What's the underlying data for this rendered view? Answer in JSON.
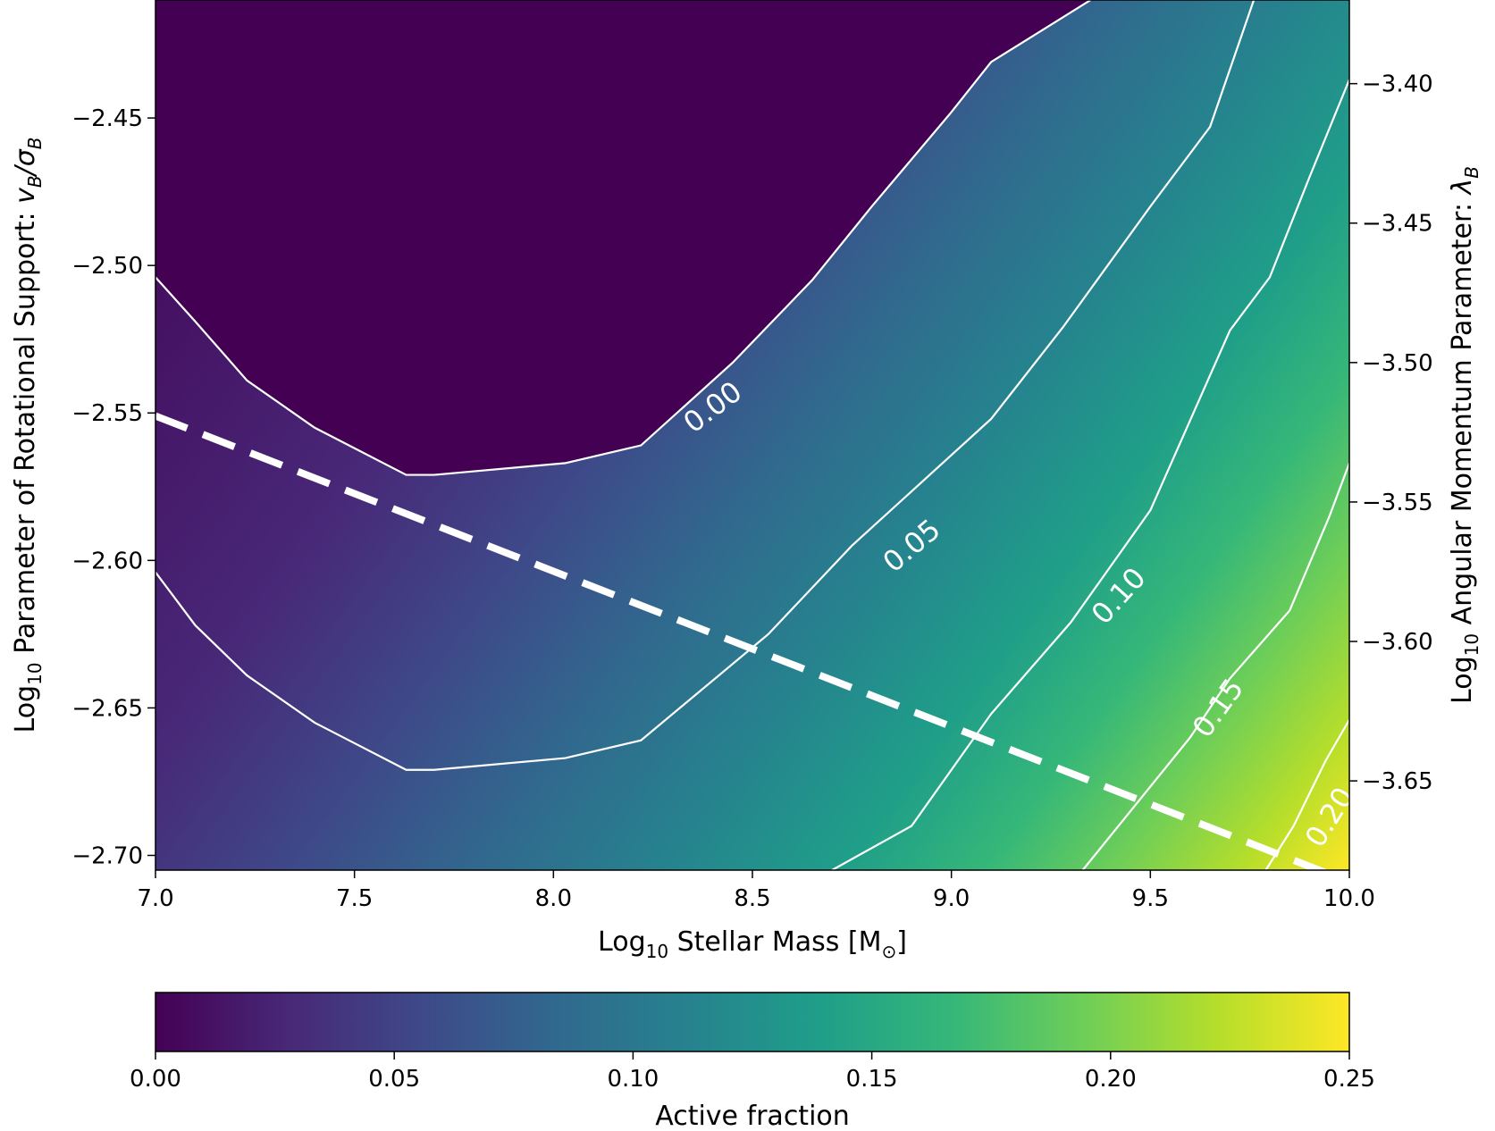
{
  "chart_data": {
    "type": "heatmap",
    "title": "",
    "xlabel": {
      "prefix": "Log",
      "sub": "10",
      "main": " Stellar Mass [M",
      "msub": "⊙",
      "suffix": "]"
    },
    "ylabel_left": {
      "prefix": "Log",
      "sub": "10",
      "main": " Parameter of Rotational Support: ",
      "math": "v",
      "mathsub": "B",
      "slash": "/σ",
      "mathsub2": "B"
    },
    "ylabel_right": {
      "prefix": "Log",
      "sub": "10",
      "main": " Angular Momentum Parameter: ",
      "math": "λ",
      "mathsub": "B"
    },
    "xlim": [
      7.0,
      10.0
    ],
    "ylim_left": [
      -2.705,
      -2.41
    ],
    "ylim_right": [
      -3.682,
      -3.37
    ],
    "x_ticks": [
      7.0,
      7.5,
      8.0,
      8.5,
      9.0,
      9.5,
      10.0
    ],
    "x_tick_labels": [
      "7.0",
      "7.5",
      "8.0",
      "8.5",
      "9.0",
      "9.5",
      "10.0"
    ],
    "y_left_ticks": [
      -2.45,
      -2.5,
      -2.55,
      -2.6,
      -2.65,
      -2.7
    ],
    "y_left_tick_labels": [
      "−2.45",
      "−2.50",
      "−2.55",
      "−2.60",
      "−2.65",
      "−2.70"
    ],
    "y_right_ticks": [
      -3.4,
      -3.45,
      -3.5,
      -3.55,
      -3.6,
      -3.65
    ],
    "y_right_tick_labels": [
      "−3.40",
      "−3.45",
      "−3.50",
      "−3.55",
      "−3.60",
      "−3.65"
    ],
    "colormap": [
      "#440154",
      "#482878",
      "#3e4989",
      "#31688e",
      "#26828e",
      "#1f9e89",
      "#35b779",
      "#6ece58",
      "#b5de2b",
      "#fde725"
    ],
    "colorbar": {
      "label": "Active fraction",
      "range": [
        0.0,
        0.25
      ],
      "ticks": [
        0.0,
        0.05,
        0.1,
        0.15,
        0.2,
        0.25
      ],
      "tick_labels": [
        "0.00",
        "0.05",
        "0.10",
        "0.15",
        "0.20",
        "0.25"
      ]
    },
    "contours": [
      {
        "level": 0.0,
        "label": "0.00",
        "points": [
          [
            7.0,
            -2.504
          ],
          [
            7.1,
            -2.519
          ],
          [
            7.23,
            -2.539
          ],
          [
            7.4,
            -2.555
          ],
          [
            7.63,
            -2.571
          ],
          [
            7.7,
            -2.571
          ],
          [
            8.03,
            -2.567
          ],
          [
            8.22,
            -2.561
          ],
          [
            8.45,
            -2.533
          ],
          [
            8.65,
            -2.505
          ],
          [
            8.8,
            -2.48
          ],
          [
            9.0,
            -2.448
          ],
          [
            9.1,
            -2.431
          ],
          [
            9.35,
            -2.41
          ]
        ]
      },
      {
        "level": 0.05,
        "label": "0.05",
        "points": [
          [
            7.0,
            -2.604
          ],
          [
            7.1,
            -2.622
          ],
          [
            7.23,
            -2.639
          ],
          [
            7.4,
            -2.655
          ],
          [
            7.63,
            -2.671
          ],
          [
            7.7,
            -2.671
          ],
          [
            8.03,
            -2.667
          ],
          [
            8.22,
            -2.661
          ],
          [
            8.54,
            -2.625
          ],
          [
            8.75,
            -2.595
          ],
          [
            9.1,
            -2.552
          ],
          [
            9.28,
            -2.521
          ],
          [
            9.5,
            -2.48
          ],
          [
            9.65,
            -2.453
          ],
          [
            9.76,
            -2.41
          ]
        ]
      },
      {
        "level": 0.1,
        "label": "0.10",
        "points": [
          [
            8.7,
            -2.705
          ],
          [
            8.9,
            -2.69
          ],
          [
            9.1,
            -2.652
          ],
          [
            9.3,
            -2.621
          ],
          [
            9.5,
            -2.583
          ],
          [
            9.7,
            -2.522
          ],
          [
            9.8,
            -2.504
          ],
          [
            9.9,
            -2.47
          ],
          [
            10.0,
            -2.437
          ]
        ]
      },
      {
        "level": 0.15,
        "label": "0.15",
        "points": [
          [
            9.33,
            -2.705
          ],
          [
            9.45,
            -2.685
          ],
          [
            9.6,
            -2.66
          ],
          [
            9.7,
            -2.64
          ],
          [
            9.85,
            -2.617
          ],
          [
            9.95,
            -2.585
          ],
          [
            10.0,
            -2.567
          ]
        ]
      },
      {
        "level": 0.2,
        "label": "0.20",
        "points": [
          [
            9.79,
            -2.705
          ],
          [
            9.86,
            -2.69
          ],
          [
            9.94,
            -2.668
          ],
          [
            10.0,
            -2.654
          ]
        ]
      }
    ],
    "contour_labels": [
      {
        "text": "0.00",
        "x": 8.4,
        "y": -2.548,
        "angle": -37
      },
      {
        "text": "0.05",
        "x": 8.9,
        "y": -2.595,
        "angle": -40
      },
      {
        "text": "0.10",
        "x": 9.42,
        "y": -2.612,
        "angle": -48
      },
      {
        "text": "0.15",
        "x": 9.67,
        "y": -2.65,
        "angle": -54
      },
      {
        "text": "0.20",
        "x": 9.95,
        "y": -2.687,
        "angle": -58
      }
    ],
    "dashed_line": {
      "x": [
        7.0,
        10.0
      ],
      "y": [
        -2.551,
        -2.709
      ]
    }
  }
}
